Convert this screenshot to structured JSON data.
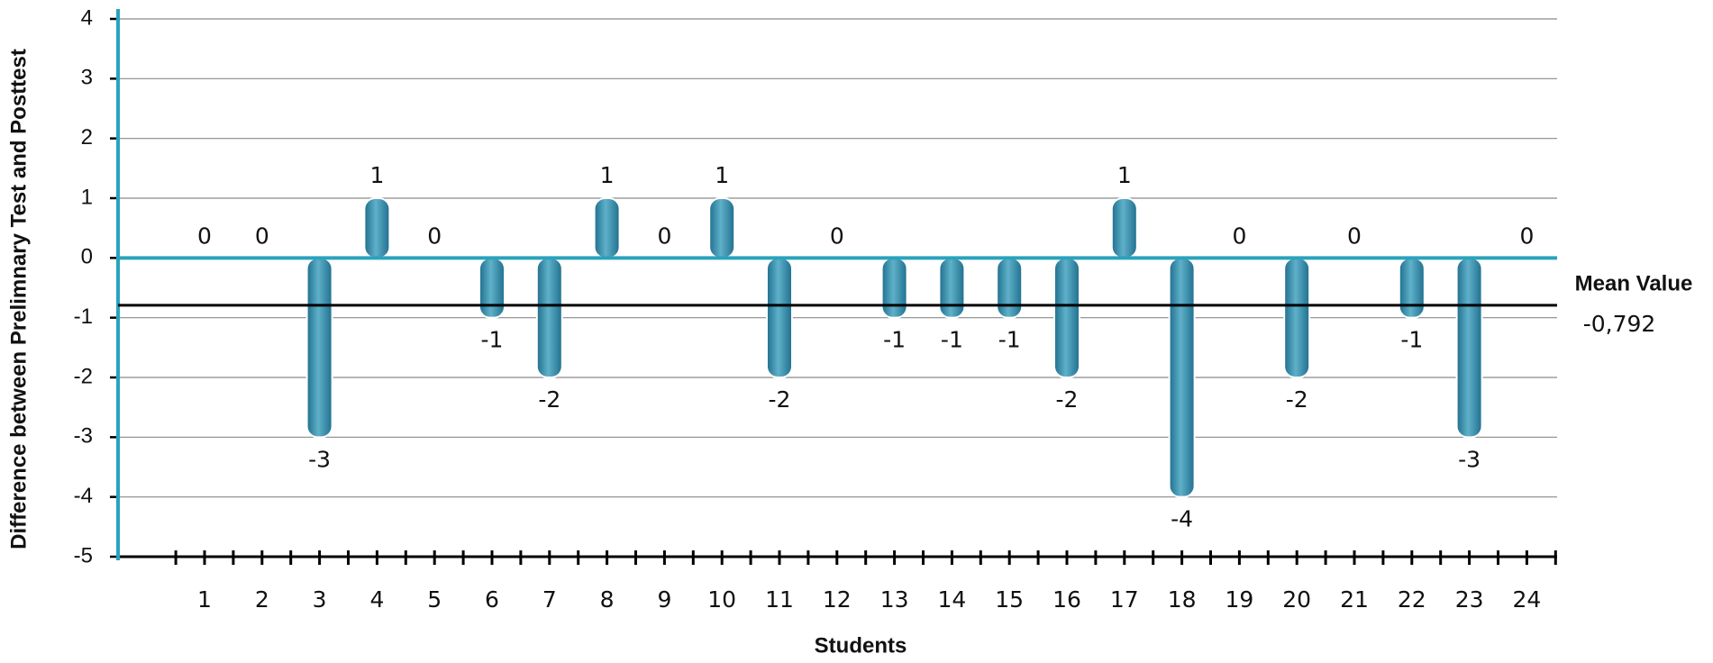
{
  "chart_data": {
    "type": "bar",
    "x_label": "Students",
    "y_label": "Difference between Prelimnary Test and Posttest",
    "categories": [
      "1",
      "2",
      "3",
      "4",
      "5",
      "6",
      "7",
      "8",
      "9",
      "10",
      "11",
      "12",
      "13",
      "14",
      "15",
      "16",
      "17",
      "18",
      "19",
      "20",
      "21",
      "22",
      "23",
      "24"
    ],
    "values": [
      0,
      0,
      -3,
      1,
      0,
      -1,
      -2,
      1,
      0,
      1,
      -2,
      0,
      -1,
      -1,
      -1,
      -2,
      1,
      -4,
      0,
      -2,
      0,
      -1,
      -3,
      0
    ],
    "color": "#2e8aa8",
    "ylim": [
      -5,
      4
    ],
    "yticks": [
      -5,
      -4,
      -3,
      -2,
      -1,
      0,
      1,
      2,
      3,
      4
    ],
    "grid": true,
    "mean": {
      "name": "Mean Value",
      "value": -0.792,
      "label": "-0,792",
      "color": "#000000"
    }
  }
}
